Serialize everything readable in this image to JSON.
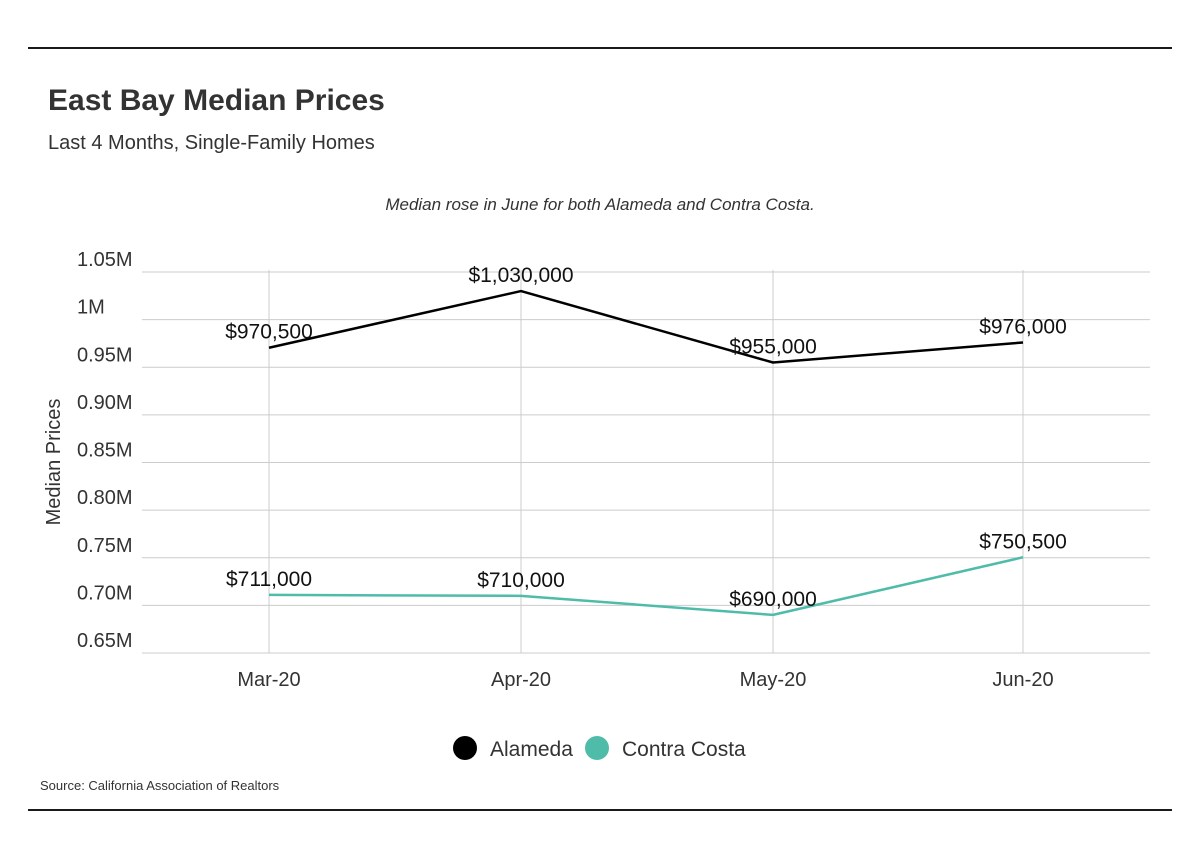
{
  "header": {
    "title": "East Bay Median Prices",
    "subtitle": "Last 4 Months, Single-Family Homes"
  },
  "footer": {
    "source": "Source:  California Association of Realtors"
  },
  "colors": {
    "alameda": "#000000",
    "contra_costa": "#4fbcaa",
    "grid": "#cccccc"
  },
  "chart_data": {
    "type": "line",
    "annotation": "Median rose in June for both Alameda and Contra Costa.",
    "categories": [
      "Mar-20",
      "Apr-20",
      "May-20",
      "Jun-20"
    ],
    "ylabel": "Median Prices",
    "xlabel": "",
    "ylim": [
      650000,
      1050000
    ],
    "yticks": [
      {
        "value": 650000,
        "label": "0.65M"
      },
      {
        "value": 700000,
        "label": "0.70M"
      },
      {
        "value": 750000,
        "label": "0.75M"
      },
      {
        "value": 800000,
        "label": "0.80M"
      },
      {
        "value": 850000,
        "label": "0.85M"
      },
      {
        "value": 900000,
        "label": "0.90M"
      },
      {
        "value": 950000,
        "label": "0.95M"
      },
      {
        "value": 1000000,
        "label": "1M"
      },
      {
        "value": 1050000,
        "label": "1.05M"
      }
    ],
    "grid": true,
    "legend_position": "bottom",
    "series": [
      {
        "name": "Alameda",
        "color": "#000000",
        "values": [
          970500,
          1030000,
          955000,
          976000
        ],
        "labels": [
          "$970,500",
          "$1,030,000",
          "$955,000",
          "$976,000"
        ]
      },
      {
        "name": "Contra Costa",
        "color": "#4fbcaa",
        "values": [
          711000,
          710000,
          690000,
          750500
        ],
        "labels": [
          "$711,000",
          "$710,000",
          "$690,000",
          "$750,500"
        ]
      }
    ]
  }
}
